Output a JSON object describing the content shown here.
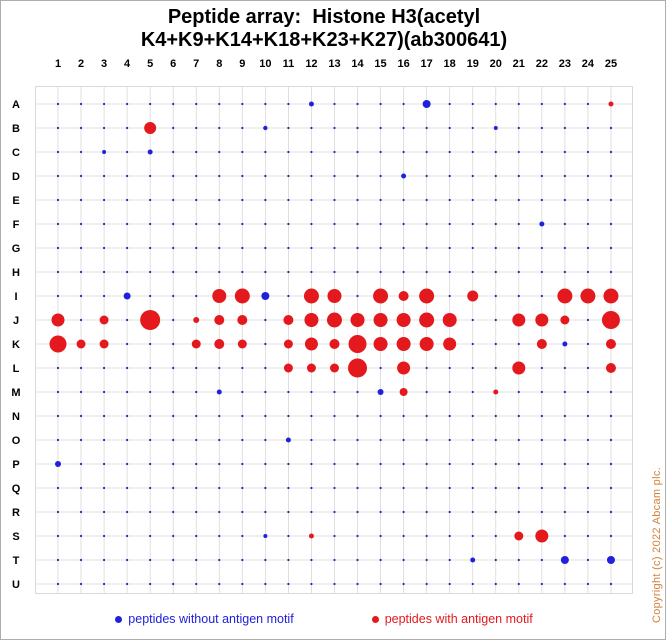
{
  "title": {
    "line1": "Peptide array:  Histone H3(acetyl",
    "line2": "K4+K9+K14+K18+K23+K27)(ab300641)"
  },
  "legend": {
    "without_label": "peptides without antigen motif",
    "with_label": "peptides with antigen motif"
  },
  "copyright": "Copyright (c) 2022 Abcam plc.",
  "colors": {
    "red": "#e3191e",
    "blue": "#2020dd",
    "background_dot": "#2626b8",
    "grid": "#d9d9d9",
    "label": "#000000",
    "copyright": "#d2823c"
  },
  "chart_data": {
    "type": "scatter",
    "title": "Peptide array: Histone H3(acetyl K4+K9+K14+K18+K23+K27)(ab300641)",
    "xlabel": "",
    "ylabel": "",
    "columns": [
      "1",
      "2",
      "3",
      "4",
      "5",
      "6",
      "7",
      "8",
      "9",
      "10",
      "11",
      "12",
      "13",
      "14",
      "15",
      "16",
      "17",
      "18",
      "19",
      "20",
      "21",
      "22",
      "23",
      "24",
      "25"
    ],
    "rows": [
      "A",
      "B",
      "C",
      "D",
      "E",
      "F",
      "G",
      "H",
      "I",
      "J",
      "K",
      "L",
      "M",
      "N",
      "O",
      "P",
      "Q",
      "R",
      "S",
      "T",
      "U"
    ],
    "legend": [
      {
        "label": "peptides without antigen motif",
        "color": "blue"
      },
      {
        "label": "peptides with antigen motif",
        "color": "red"
      }
    ],
    "background_dot_radius": 1.1,
    "spots": [
      {
        "row": "A",
        "col": 12,
        "color": "blue",
        "r": 2.5
      },
      {
        "row": "A",
        "col": 17,
        "color": "blue",
        "r": 4
      },
      {
        "row": "A",
        "col": 25,
        "color": "red",
        "r": 2.5
      },
      {
        "row": "B",
        "col": 5,
        "color": "red",
        "r": 6
      },
      {
        "row": "B",
        "col": 10,
        "color": "blue",
        "r": 2.2
      },
      {
        "row": "B",
        "col": 20,
        "color": "blue",
        "r": 2
      },
      {
        "row": "C",
        "col": 3,
        "color": "blue",
        "r": 2
      },
      {
        "row": "C",
        "col": 5,
        "color": "blue",
        "r": 2.5
      },
      {
        "row": "D",
        "col": 16,
        "color": "blue",
        "r": 2.5
      },
      {
        "row": "F",
        "col": 22,
        "color": "blue",
        "r": 2.5
      },
      {
        "row": "I",
        "col": 4,
        "color": "blue",
        "r": 3.5
      },
      {
        "row": "I",
        "col": 8,
        "color": "red",
        "r": 7
      },
      {
        "row": "I",
        "col": 9,
        "color": "red",
        "r": 7.5
      },
      {
        "row": "I",
        "col": 10,
        "color": "blue",
        "r": 4
      },
      {
        "row": "I",
        "col": 12,
        "color": "red",
        "r": 7.5
      },
      {
        "row": "I",
        "col": 13,
        "color": "red",
        "r": 7
      },
      {
        "row": "I",
        "col": 15,
        "color": "red",
        "r": 7.5
      },
      {
        "row": "I",
        "col": 16,
        "color": "red",
        "r": 5
      },
      {
        "row": "I",
        "col": 17,
        "color": "red",
        "r": 7.5
      },
      {
        "row": "I",
        "col": 19,
        "color": "red",
        "r": 5.5
      },
      {
        "row": "I",
        "col": 23,
        "color": "red",
        "r": 7.5
      },
      {
        "row": "I",
        "col": 24,
        "color": "red",
        "r": 7.5
      },
      {
        "row": "I",
        "col": 25,
        "color": "red",
        "r": 7.5
      },
      {
        "row": "J",
        "col": 1,
        "color": "red",
        "r": 6.5
      },
      {
        "row": "J",
        "col": 3,
        "color": "red",
        "r": 4.5
      },
      {
        "row": "J",
        "col": 5,
        "color": "red",
        "r": 10
      },
      {
        "row": "J",
        "col": 7,
        "color": "red",
        "r": 3
      },
      {
        "row": "J",
        "col": 8,
        "color": "red",
        "r": 5
      },
      {
        "row": "J",
        "col": 9,
        "color": "red",
        "r": 5
      },
      {
        "row": "J",
        "col": 11,
        "color": "red",
        "r": 5
      },
      {
        "row": "J",
        "col": 12,
        "color": "red",
        "r": 7
      },
      {
        "row": "J",
        "col": 13,
        "color": "red",
        "r": 7.5
      },
      {
        "row": "J",
        "col": 14,
        "color": "red",
        "r": 7
      },
      {
        "row": "J",
        "col": 15,
        "color": "red",
        "r": 7
      },
      {
        "row": "J",
        "col": 16,
        "color": "red",
        "r": 7
      },
      {
        "row": "J",
        "col": 17,
        "color": "red",
        "r": 7.5
      },
      {
        "row": "J",
        "col": 18,
        "color": "red",
        "r": 7
      },
      {
        "row": "J",
        "col": 21,
        "color": "red",
        "r": 6.5
      },
      {
        "row": "J",
        "col": 22,
        "color": "red",
        "r": 6.5
      },
      {
        "row": "J",
        "col": 23,
        "color": "red",
        "r": 4.5
      },
      {
        "row": "J",
        "col": 25,
        "color": "red",
        "r": 9
      },
      {
        "row": "K",
        "col": 1,
        "color": "red",
        "r": 8.5
      },
      {
        "row": "K",
        "col": 2,
        "color": "red",
        "r": 4.5
      },
      {
        "row": "K",
        "col": 3,
        "color": "red",
        "r": 4.5
      },
      {
        "row": "K",
        "col": 7,
        "color": "red",
        "r": 4.5
      },
      {
        "row": "K",
        "col": 8,
        "color": "red",
        "r": 5
      },
      {
        "row": "K",
        "col": 9,
        "color": "red",
        "r": 4.5
      },
      {
        "row": "K",
        "col": 11,
        "color": "red",
        "r": 4.5
      },
      {
        "row": "K",
        "col": 12,
        "color": "red",
        "r": 6.5
      },
      {
        "row": "K",
        "col": 13,
        "color": "red",
        "r": 5
      },
      {
        "row": "K",
        "col": 14,
        "color": "red",
        "r": 9
      },
      {
        "row": "K",
        "col": 15,
        "color": "red",
        "r": 7
      },
      {
        "row": "K",
        "col": 16,
        "color": "red",
        "r": 7
      },
      {
        "row": "K",
        "col": 17,
        "color": "red",
        "r": 7
      },
      {
        "row": "K",
        "col": 18,
        "color": "red",
        "r": 6.5
      },
      {
        "row": "K",
        "col": 22,
        "color": "red",
        "r": 5
      },
      {
        "row": "K",
        "col": 23,
        "color": "blue",
        "r": 2.5
      },
      {
        "row": "K",
        "col": 25,
        "color": "red",
        "r": 5
      },
      {
        "row": "L",
        "col": 11,
        "color": "red",
        "r": 4.5
      },
      {
        "row": "L",
        "col": 12,
        "color": "red",
        "r": 4.5
      },
      {
        "row": "L",
        "col": 13,
        "color": "red",
        "r": 4.5
      },
      {
        "row": "L",
        "col": 14,
        "color": "red",
        "r": 9.5
      },
      {
        "row": "L",
        "col": 16,
        "color": "red",
        "r": 6.5
      },
      {
        "row": "L",
        "col": 21,
        "color": "red",
        "r": 6.5
      },
      {
        "row": "L",
        "col": 25,
        "color": "red",
        "r": 5
      },
      {
        "row": "M",
        "col": 8,
        "color": "blue",
        "r": 2.5
      },
      {
        "row": "M",
        "col": 15,
        "color": "blue",
        "r": 3
      },
      {
        "row": "M",
        "col": 16,
        "color": "red",
        "r": 4
      },
      {
        "row": "M",
        "col": 20,
        "color": "red",
        "r": 2.5
      },
      {
        "row": "O",
        "col": 11,
        "color": "blue",
        "r": 2.5
      },
      {
        "row": "P",
        "col": 1,
        "color": "blue",
        "r": 3
      },
      {
        "row": "S",
        "col": 10,
        "color": "blue",
        "r": 2
      },
      {
        "row": "S",
        "col": 12,
        "color": "red",
        "r": 2.5
      },
      {
        "row": "S",
        "col": 21,
        "color": "red",
        "r": 4.5
      },
      {
        "row": "S",
        "col": 22,
        "color": "red",
        "r": 6.5
      },
      {
        "row": "T",
        "col": 19,
        "color": "blue",
        "r": 2.5
      },
      {
        "row": "T",
        "col": 23,
        "color": "blue",
        "r": 4
      },
      {
        "row": "T",
        "col": 25,
        "color": "blue",
        "r": 4
      }
    ]
  }
}
